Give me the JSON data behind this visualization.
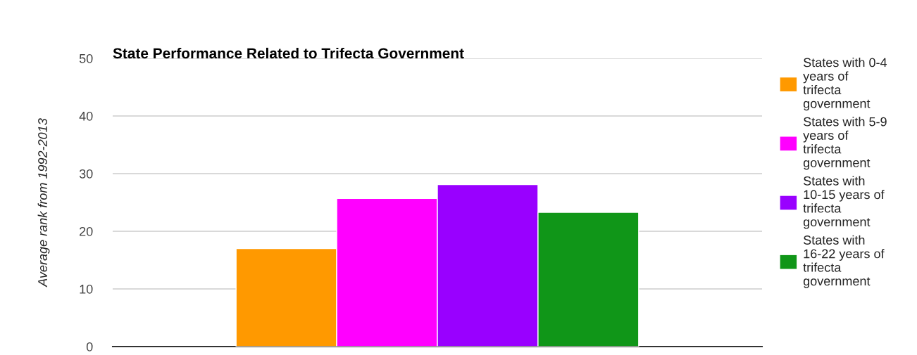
{
  "chart_data": {
    "type": "bar",
    "title": "State Performance Related to Trifecta Government",
    "ylabel": "Average rank from 1992-2013",
    "categories": [
      null
    ],
    "series": [
      {
        "name": "States with 0-4 years of trifecta government",
        "color": "#ff9900",
        "values": [
          17.0
        ]
      },
      {
        "name": "States with 5-9 years of trifecta government",
        "color": "#ff00ff",
        "values": [
          25.7
        ]
      },
      {
        "name": "States with 10-15 years of trifecta government",
        "color": "#9900ff",
        "values": [
          28.1
        ]
      },
      {
        "name": "States with 16-22 years of trifecta government",
        "color": "#109618",
        "values": [
          23.3
        ]
      }
    ],
    "ylim": [
      0,
      50
    ],
    "yticks": [
      0,
      10,
      20,
      30,
      40,
      50
    ],
    "grid": "y",
    "legend": "right"
  }
}
